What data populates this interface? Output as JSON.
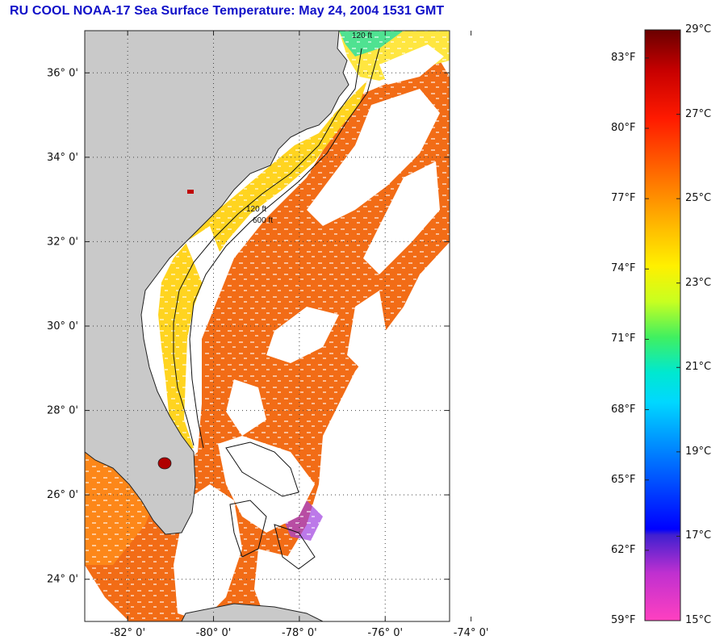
{
  "title": "RU COOL  NOAA-17  Sea Surface Temperature:  May 24, 2004 1531 GMT",
  "colors": {
    "title": "#1010c8",
    "land": "#c9c9c9",
    "ocean_warm": "#f06a14",
    "ocean_shelf": "#ffd21e"
  },
  "map": {
    "lat_labels": [
      "36° 0'",
      "34° 0'",
      "32° 0'",
      "30° 0'",
      "28° 0'",
      "26° 0'",
      "24° 0'"
    ],
    "lon_labels": [
      "-82° 0'",
      "-80° 0'",
      "-78° 0'",
      "-76° 0'",
      "-74° 0'"
    ],
    "lat_values": [
      36,
      34,
      32,
      30,
      28,
      26,
      24
    ],
    "lon_values": [
      -82,
      -80,
      -78,
      -76,
      -74
    ],
    "lat_range": [
      23.0,
      37.0
    ],
    "lon_range": [
      -83.0,
      -74.5
    ],
    "contour_labels": [
      "120 ft",
      "600 ft"
    ]
  },
  "colorbar": {
    "fahrenheit": [
      "83°F",
      "80°F",
      "77°F",
      "74°F",
      "71°F",
      "68°F",
      "65°F",
      "62°F",
      "59°F"
    ],
    "celsius": [
      "29°C",
      "27°C",
      "25°C",
      "23°C",
      "21°C",
      "19°C",
      "17°C",
      "15°C"
    ],
    "fahrenheit_values": [
      83,
      80,
      77,
      74,
      71,
      68,
      65,
      62,
      59
    ],
    "celsius_values": [
      29,
      27,
      25,
      23,
      21,
      19,
      17,
      15
    ],
    "range_c": [
      15,
      29
    ]
  }
}
